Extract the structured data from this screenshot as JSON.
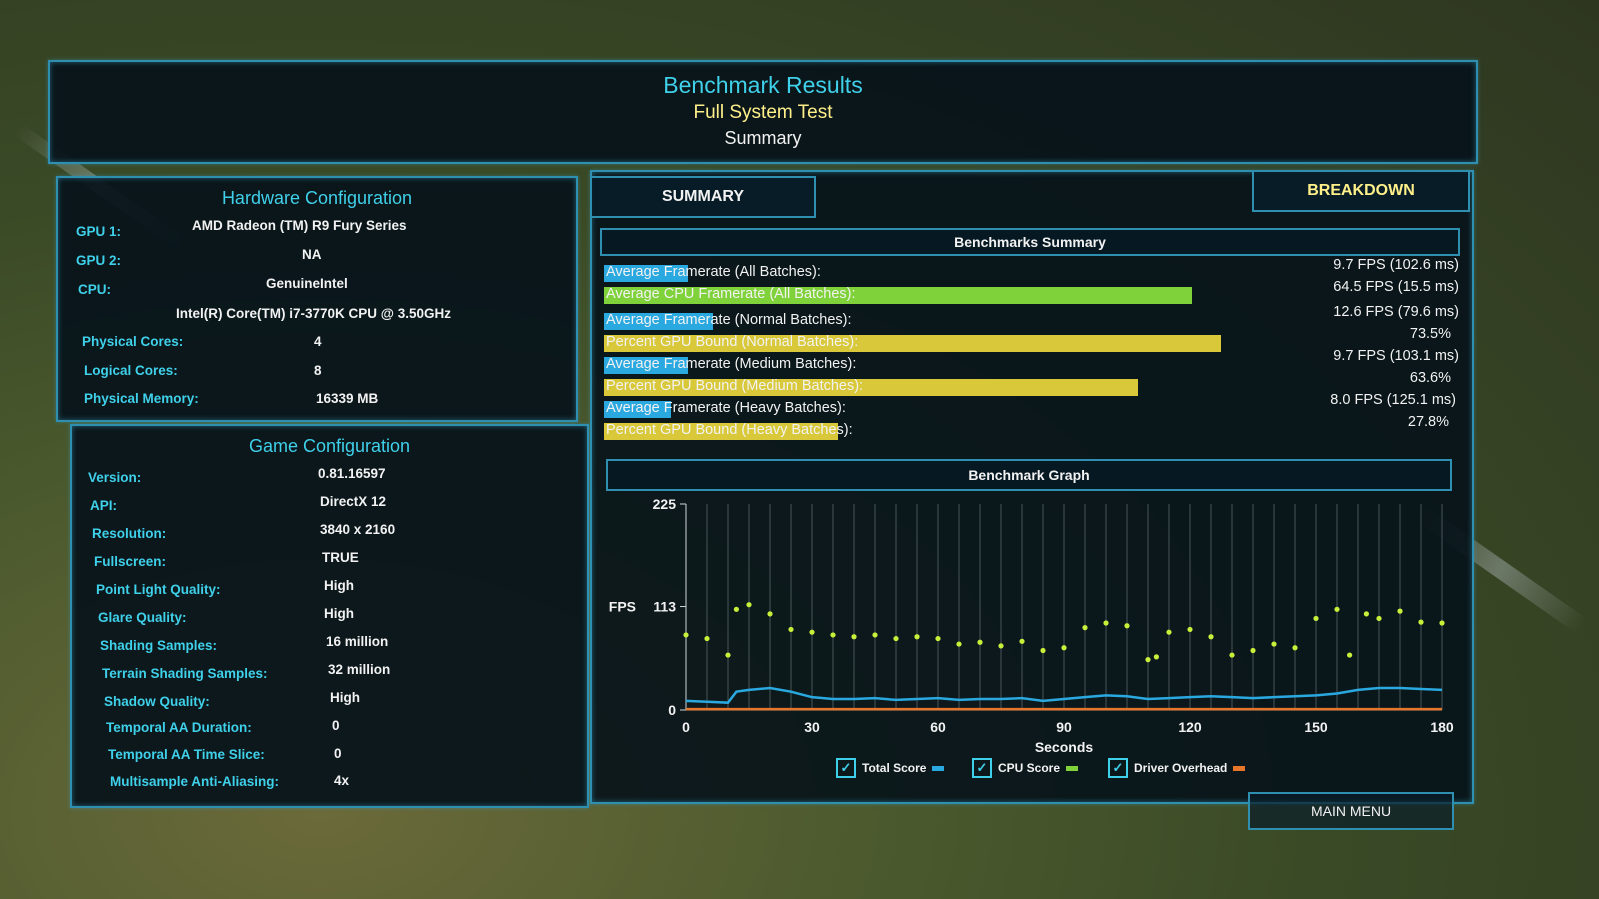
{
  "header": {
    "title": "Benchmark Results",
    "subtitle": "Full System Test",
    "subtitle2": "Summary"
  },
  "hardware": {
    "title": "Hardware Configuration",
    "rows": [
      {
        "label": "GPU 1:",
        "value": "AMD Radeon (TM) R9 Fury Series"
      },
      {
        "label": "GPU 2:",
        "value": "NA"
      },
      {
        "label": "CPU:",
        "value": "GenuineIntel"
      },
      {
        "label": "",
        "value": "Intel(R) Core(TM) i7-3770K CPU @ 3.50GHz"
      },
      {
        "label": "Physical Cores:",
        "value": "4"
      },
      {
        "label": "Logical Cores:",
        "value": "8"
      },
      {
        "label": "Physical Memory:",
        "value": "16339  MB"
      }
    ]
  },
  "game": {
    "title": "Game Configuration",
    "rows": [
      {
        "label": "Version:",
        "value": "0.81.16597"
      },
      {
        "label": "API:",
        "value": "DirectX 12"
      },
      {
        "label": "Resolution:",
        "value": "3840 x 2160"
      },
      {
        "label": "Fullscreen:",
        "value": "TRUE"
      },
      {
        "label": "Point Light Quality:",
        "value": "High"
      },
      {
        "label": "Glare Quality:",
        "value": "High"
      },
      {
        "label": "Shading Samples:",
        "value": "16 million"
      },
      {
        "label": "Terrain Shading Samples:",
        "value": "32 million"
      },
      {
        "label": "Shadow Quality:",
        "value": "High"
      },
      {
        "label": "Temporal AA Duration:",
        "value": "0"
      },
      {
        "label": "Temporal AA Time Slice:",
        "value": "0"
      },
      {
        "label": "Multisample Anti-Aliasing:",
        "value": "4x"
      }
    ]
  },
  "tabs": {
    "summary": "SUMMARY",
    "breakdown": "BREAKDOWN"
  },
  "benchmarks_summary": {
    "title": "Benchmarks Summary",
    "rows": [
      {
        "label": "Average Framerate (All Batches):",
        "value": "9.7 FPS (102.6 ms)",
        "bar_fraction": 0.1,
        "color": "#2aa8e0"
      },
      {
        "label": "Average CPU Framerate (All Batches):",
        "value": "64.5 FPS (15.5 ms)",
        "bar_fraction": 0.7,
        "color": "#7fd23a"
      },
      {
        "label": "Average Framerate (Normal Batches):",
        "value": "12.6 FPS (79.6 ms)",
        "bar_fraction": 0.13,
        "color": "#2aa8e0"
      },
      {
        "label": "Percent GPU Bound (Normal Batches):",
        "value": "73.5%",
        "bar_fraction": 0.735,
        "color": "#d8c83a"
      },
      {
        "label": "Average Framerate (Medium Batches):",
        "value": "9.7 FPS (103.1 ms)",
        "bar_fraction": 0.1,
        "color": "#2aa8e0"
      },
      {
        "label": "Percent GPU Bound (Medium Batches):",
        "value": "63.6%",
        "bar_fraction": 0.636,
        "color": "#d8c83a"
      },
      {
        "label": "Average Framerate (Heavy Batches):",
        "value": "8.0 FPS (125.1 ms)",
        "bar_fraction": 0.08,
        "color": "#2aa8e0"
      },
      {
        "label": "Percent GPU Bound (Heavy Batches):",
        "value": "27.8%",
        "bar_fraction": 0.278,
        "color": "#d8c83a"
      }
    ]
  },
  "graph": {
    "title": "Benchmark Graph",
    "legend": [
      {
        "label": "Total Score",
        "color": "#2aa8e0"
      },
      {
        "label": "CPU Score",
        "color": "#7fd23a"
      },
      {
        "label": "Driver Overhead",
        "color": "#e8762a"
      }
    ]
  },
  "chart_data": {
    "type": "scatter",
    "title": "Benchmark Graph",
    "xlabel": "Seconds",
    "ylabel": "FPS",
    "xlim": [
      0,
      180
    ],
    "ylim": [
      0,
      225
    ],
    "xticks": [
      "0",
      "30",
      "60",
      "90",
      "120",
      "150",
      "180"
    ],
    "yticks": [
      "0",
      "113",
      "225"
    ],
    "series": [
      {
        "name": "CPU Score",
        "color": "#c8f03a",
        "x": [
          0,
          5,
          10,
          12,
          15,
          20,
          25,
          30,
          35,
          40,
          45,
          50,
          55,
          60,
          65,
          70,
          75,
          80,
          85,
          90,
          95,
          100,
          105,
          110,
          112,
          115,
          120,
          125,
          130,
          135,
          140,
          145,
          150,
          155,
          158,
          162,
          165,
          170,
          175,
          180
        ],
        "values": [
          82,
          78,
          60,
          110,
          115,
          105,
          88,
          85,
          82,
          80,
          82,
          78,
          80,
          78,
          72,
          74,
          70,
          75,
          65,
          68,
          90,
          95,
          92,
          55,
          58,
          85,
          88,
          80,
          60,
          65,
          72,
          68,
          100,
          110,
          60,
          105,
          100,
          108,
          96,
          95
        ]
      },
      {
        "name": "Total Score",
        "color": "#2aa8e0",
        "x": [
          0,
          5,
          10,
          12,
          15,
          20,
          25,
          30,
          35,
          40,
          45,
          50,
          55,
          60,
          65,
          70,
          75,
          80,
          85,
          90,
          95,
          100,
          105,
          110,
          115,
          120,
          125,
          130,
          135,
          140,
          145,
          150,
          155,
          160,
          165,
          170,
          175,
          180
        ],
        "values": [
          10,
          9,
          8,
          20,
          22,
          24,
          20,
          14,
          12,
          12,
          13,
          11,
          12,
          13,
          11,
          12,
          12,
          13,
          10,
          12,
          14,
          16,
          15,
          12,
          13,
          14,
          15,
          14,
          13,
          14,
          15,
          16,
          18,
          22,
          24,
          24,
          23,
          22
        ]
      },
      {
        "name": "Driver Overhead",
        "color": "#e8762a",
        "x": [
          0,
          30,
          60,
          90,
          120,
          150,
          180
        ],
        "values": [
          1,
          1,
          1,
          1,
          1,
          1,
          1
        ]
      }
    ]
  },
  "footer": {
    "main_menu": "MAIN MENU"
  }
}
